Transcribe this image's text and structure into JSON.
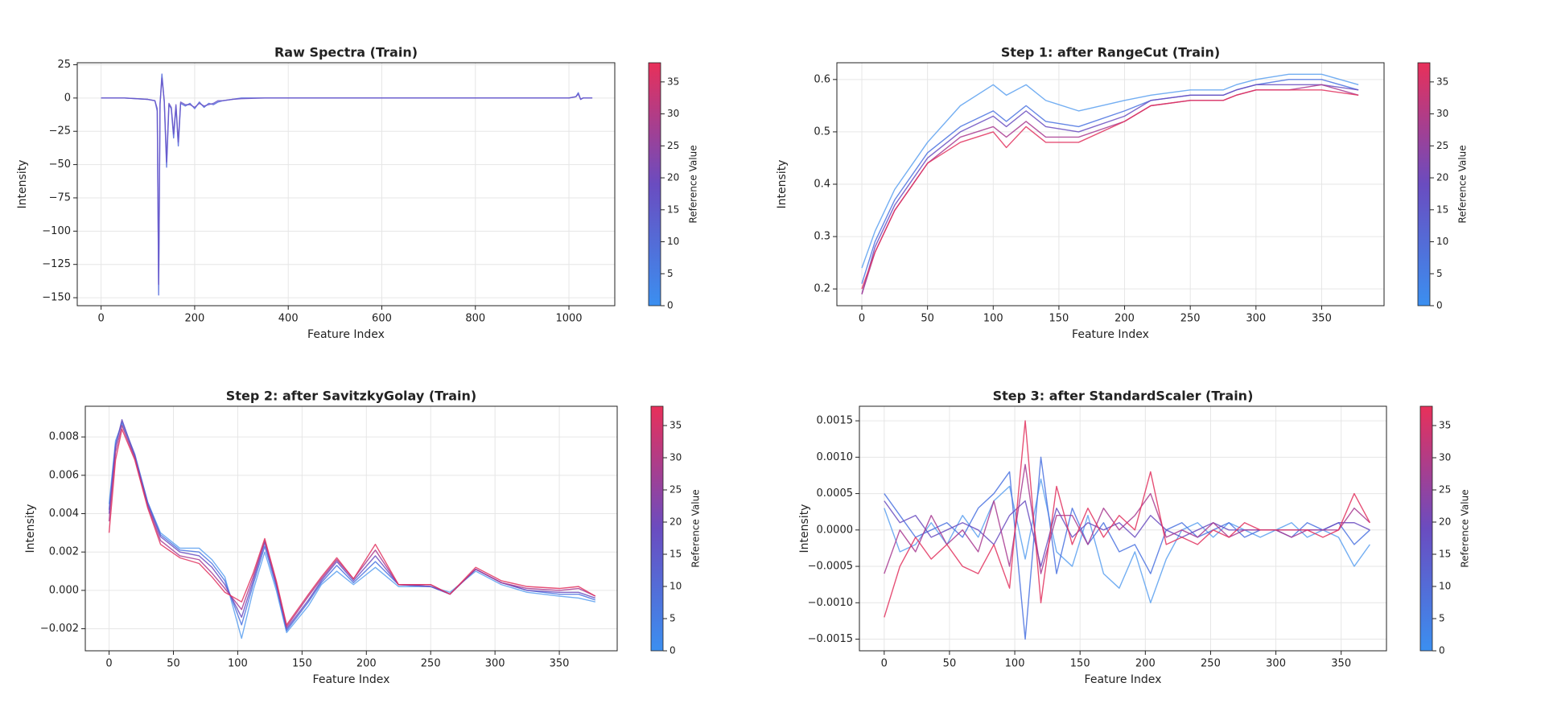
{
  "chart_data": [
    {
      "type": "line",
      "title": "Raw Spectra (Train)",
      "xlabel": "Feature Index",
      "ylabel": "Intensity",
      "x": [
        0,
        50,
        100,
        115,
        120,
        123,
        126,
        130,
        135,
        140,
        145,
        150,
        155,
        160,
        165,
        170,
        180,
        190,
        200,
        210,
        220,
        230,
        240,
        250,
        260,
        280,
        300,
        350,
        400,
        600,
        800,
        1000,
        1015,
        1020,
        1025,
        1030,
        1050
      ],
      "series": [
        {
          "color": "#4f66dc",
          "values": [
            0,
            0,
            -1,
            -2,
            -10,
            -148,
            -5,
            18,
            -3,
            -52,
            -5,
            -8,
            -30,
            -6,
            -36,
            -4,
            -6,
            -4,
            -8,
            -3,
            -7,
            -4,
            -5,
            -3,
            -2,
            -1,
            0,
            0,
            0,
            0,
            0,
            0,
            1,
            4,
            -1,
            0,
            0
          ]
        },
        {
          "color": "#6a55c8",
          "values": [
            0,
            0,
            -1,
            -2,
            -8,
            -140,
            -4,
            15,
            -2,
            -48,
            -4,
            -7,
            -27,
            -5,
            -33,
            -3,
            -5,
            -5,
            -7,
            -4,
            -6,
            -5,
            -4,
            -2,
            -2,
            -1,
            -0.5,
            0,
            0,
            0,
            0,
            0,
            1,
            3,
            -1,
            0,
            0
          ]
        }
      ],
      "xlim": [
        -51,
        1098
      ],
      "ylim": [
        -156,
        26.5
      ],
      "xticks": [
        0,
        200,
        400,
        600,
        800,
        1000
      ],
      "yticks": [
        25,
        0,
        {
          "value": -25,
          "label": "−25"
        },
        {
          "value": -50,
          "label": "−50"
        },
        {
          "value": -75,
          "label": "−75"
        },
        {
          "value": -100,
          "label": "−100"
        },
        {
          "value": -125,
          "label": "−125"
        },
        {
          "value": -150,
          "label": "−150"
        }
      ],
      "grid": true,
      "colorbar": {
        "label": "Reference Value",
        "lim": [
          0,
          38
        ],
        "ticks": [
          0,
          5,
          10,
          15,
          20,
          25,
          30,
          35
        ],
        "colors": [
          "#3b8ff0",
          "#6a4cc0",
          "#e8305a"
        ]
      }
    },
    {
      "type": "line",
      "title": "Step 1: after RangeCut (Train)",
      "xlabel": "Feature Index",
      "ylabel": "Intensity",
      "x": [
        0,
        10,
        25,
        50,
        75,
        100,
        110,
        125,
        140,
        165,
        200,
        220,
        250,
        275,
        285,
        300,
        325,
        350,
        378
      ],
      "series": [
        {
          "color": "#5aa0f0",
          "values": [
            0.24,
            0.31,
            0.39,
            0.48,
            0.55,
            0.59,
            0.57,
            0.59,
            0.56,
            0.54,
            0.56,
            0.57,
            0.58,
            0.58,
            0.59,
            0.6,
            0.61,
            0.61,
            0.59
          ]
        },
        {
          "color": "#4a72e0",
          "values": [
            0.21,
            0.29,
            0.37,
            0.46,
            0.51,
            0.54,
            0.52,
            0.55,
            0.52,
            0.51,
            0.54,
            0.56,
            0.57,
            0.57,
            0.58,
            0.59,
            0.6,
            0.6,
            0.58
          ]
        },
        {
          "color": "#6a4cc0",
          "values": [
            0.19,
            0.28,
            0.36,
            0.45,
            0.5,
            0.53,
            0.51,
            0.54,
            0.51,
            0.5,
            0.53,
            0.56,
            0.57,
            0.57,
            0.58,
            0.59,
            0.59,
            0.59,
            0.58
          ]
        },
        {
          "color": "#a83a90",
          "values": [
            0.19,
            0.27,
            0.35,
            0.44,
            0.49,
            0.51,
            0.49,
            0.52,
            0.49,
            0.49,
            0.52,
            0.55,
            0.56,
            0.56,
            0.57,
            0.58,
            0.58,
            0.59,
            0.57
          ]
        },
        {
          "color": "#e2315e",
          "values": [
            0.2,
            0.27,
            0.35,
            0.44,
            0.48,
            0.5,
            0.47,
            0.51,
            0.48,
            0.48,
            0.52,
            0.55,
            0.56,
            0.56,
            0.57,
            0.58,
            0.58,
            0.58,
            0.57
          ]
        }
      ],
      "xlim": [
        -19,
        397.5
      ],
      "ylim": [
        0.168,
        0.632
      ],
      "xticks": [
        0,
        50,
        100,
        150,
        200,
        250,
        300,
        350
      ],
      "yticks": [
        0.2,
        0.3,
        0.4,
        0.5,
        0.6
      ],
      "grid": true,
      "colorbar": {
        "label": "Reference Value",
        "lim": [
          0,
          38
        ],
        "ticks": [
          0,
          5,
          10,
          15,
          20,
          25,
          30,
          35
        ],
        "colors": [
          "#3b8ff0",
          "#6a4cc0",
          "#e8305a"
        ]
      }
    },
    {
      "type": "line",
      "title": "Step 2: after SavitzkyGolay (Train)",
      "xlabel": "Feature Index",
      "ylabel": "Intensity",
      "x": [
        0,
        5,
        10,
        20,
        30,
        40,
        55,
        70,
        80,
        90,
        103,
        112,
        121,
        130,
        138,
        155,
        165,
        177,
        190,
        207,
        225,
        250,
        265,
        285,
        305,
        325,
        350,
        365,
        378
      ],
      "series": [
        {
          "color": "#5aa0f0",
          "values": [
            0.0045,
            0.0078,
            0.0087,
            0.007,
            0.0046,
            0.003,
            0.0022,
            0.0022,
            0.0016,
            0.0007,
            -0.0025,
            0,
            0.002,
            0,
            -0.0022,
            -0.0008,
            0.0003,
            0.001,
            0.0003,
            0.0012,
            0.0002,
            0.0002,
            -0.0001,
            0.001,
            0.0003,
            -0.0001,
            -0.0003,
            -0.0004,
            -0.0006
          ]
        },
        {
          "color": "#4a72e0",
          "values": [
            0.0042,
            0.0076,
            0.0088,
            0.0071,
            0.0046,
            0.0029,
            0.0021,
            0.002,
            0.0014,
            0.0005,
            -0.0018,
            0.0003,
            0.0023,
            0.0002,
            -0.0021,
            -0.0006,
            0.0004,
            0.0013,
            0.0004,
            0.0015,
            0.0003,
            0.0002,
            -0.0002,
            0.0011,
            0.0004,
            0,
            -0.0002,
            -0.0002,
            -0.0005
          ]
        },
        {
          "color": "#6a4cc0",
          "values": [
            0.004,
            0.0075,
            0.0089,
            0.007,
            0.0045,
            0.0028,
            0.002,
            0.0018,
            0.0012,
            0.0003,
            -0.0014,
            0.0005,
            0.0025,
            0.0003,
            -0.002,
            -0.0005,
            0.0005,
            0.0015,
            0.0005,
            0.0018,
            0.0003,
            0.0002,
            -0.0002,
            0.0011,
            0.0004,
            0,
            -0.0001,
            -0.0001,
            -0.0004
          ]
        },
        {
          "color": "#a83a90",
          "values": [
            0.0036,
            0.0072,
            0.0086,
            0.0069,
            0.0044,
            0.0026,
            0.0018,
            0.0016,
            0.0009,
            0.0001,
            -0.001,
            0.0007,
            0.0026,
            0.0004,
            -0.0019,
            -0.0003,
            0.0006,
            0.0016,
            0.0006,
            0.0021,
            0.0003,
            0.0003,
            -0.0002,
            0.0011,
            0.0004,
            0.0001,
            0,
            0.0001,
            -0.0003
          ]
        },
        {
          "color": "#e2315e",
          "values": [
            0.003,
            0.0068,
            0.0084,
            0.0068,
            0.0043,
            0.0024,
            0.0017,
            0.0014,
            0.0007,
            -0.0001,
            -0.0006,
            0.0009,
            0.0027,
            0.0005,
            -0.0018,
            -0.0002,
            0.0007,
            0.0017,
            0.0006,
            0.0024,
            0.0003,
            0.0003,
            -0.0002,
            0.0012,
            0.0005,
            0.0002,
            0.0001,
            0.0002,
            -0.0003
          ]
        }
      ],
      "xlim": [
        -18.5,
        395
      ],
      "ylim": [
        -0.00315,
        0.0096
      ],
      "xticks": [
        0,
        50,
        100,
        150,
        200,
        250,
        300,
        350
      ],
      "yticks": [
        {
          "value": -0.002,
          "label": "−0.002"
        },
        {
          "value": 0,
          "label": "0.000"
        },
        0.002,
        0.004,
        0.006,
        0.008
      ],
      "grid": true,
      "colorbar": {
        "label": "Reference Value",
        "lim": [
          0,
          38
        ],
        "ticks": [
          0,
          5,
          10,
          15,
          20,
          25,
          30,
          35
        ],
        "colors": [
          "#3b8ff0",
          "#6a4cc0",
          "#e8305a"
        ]
      }
    },
    {
      "type": "line",
      "title": "Step 3: after StandardScaler (Train)",
      "xlabel": "Feature Index",
      "ylabel": "Intensity",
      "x": [
        0,
        12,
        24,
        36,
        48,
        60,
        72,
        84,
        96,
        108,
        120,
        132,
        144,
        156,
        168,
        180,
        192,
        204,
        216,
        228,
        240,
        252,
        264,
        276,
        288,
        300,
        312,
        324,
        336,
        348,
        360,
        372
      ],
      "series": [
        {
          "color": "#5aa0f0",
          "values": [
            0.0003,
            -0.0003,
            -0.0002,
            0.0001,
            -0.0002,
            0.0002,
            -0.0001,
            0.0004,
            0.0006,
            -0.0004,
            0.0007,
            -0.0003,
            -0.0005,
            0.0002,
            -0.0006,
            -0.0008,
            -0.0003,
            -0.001,
            -0.0004,
            0,
            0.0001,
            -0.0001,
            0.0001,
            0,
            -0.0001,
            0,
            0.0001,
            -0.0001,
            0,
            -0.0001,
            -0.0005,
            -0.0002
          ]
        },
        {
          "color": "#4a72e0",
          "values": [
            0.0005,
            0.0002,
            -0.0001,
            0,
            0.0001,
            -0.0001,
            0.0003,
            0.0005,
            0.0008,
            -0.0015,
            0.001,
            -0.0006,
            0.0003,
            -0.0002,
            0.0001,
            -0.0003,
            -0.0002,
            -0.0006,
            0,
            0.0001,
            -0.0001,
            0,
            0.0001,
            -0.0001,
            0,
            0,
            -0.0001,
            0.0001,
            0,
            0.0001,
            -0.0002,
            0
          ]
        },
        {
          "color": "#6a4cc0",
          "values": [
            0.0004,
            0.0001,
            0.0002,
            -0.0001,
            0,
            0.0001,
            0,
            -0.0002,
            0.0002,
            0.0004,
            -0.0005,
            0.0003,
            -0.0001,
            0.0001,
            0,
            0.0001,
            -0.0001,
            0.0002,
            0,
            -0.0001,
            0,
            0.0001,
            0,
            0,
            0,
            0,
            0,
            0,
            0,
            0.0001,
            0.0001,
            0
          ]
        },
        {
          "color": "#a83a90",
          "values": [
            -0.0006,
            0,
            -0.0003,
            0.0002,
            -0.0002,
            0,
            -0.0003,
            0.0004,
            -0.0005,
            0.0009,
            -0.0006,
            0.0002,
            0.0002,
            -0.0002,
            0.0003,
            0,
            0.0002,
            0.0005,
            -0.0001,
            0,
            -0.0001,
            0.0001,
            -0.0001,
            0,
            0,
            0,
            -0.0001,
            0,
            0,
            0,
            0.0003,
            0.0001
          ]
        },
        {
          "color": "#e2315e",
          "values": [
            -0.0012,
            -0.0005,
            -0.0001,
            -0.0004,
            -0.0002,
            -0.0005,
            -0.0006,
            -0.0002,
            -0.0008,
            0.0015,
            -0.001,
            0.0006,
            -0.0002,
            0.0003,
            -0.0001,
            0.0002,
            0,
            0.0008,
            -0.0002,
            -0.0001,
            -0.0002,
            0,
            -0.0001,
            0.0001,
            0,
            0,
            0,
            0,
            -0.0001,
            0,
            0.0005,
            0.0001
          ]
        }
      ],
      "xlim": [
        -19,
        384.7
      ],
      "ylim": [
        -0.00166,
        0.0017
      ],
      "xticks": [
        0,
        50,
        100,
        150,
        200,
        250,
        300,
        350
      ],
      "yticks": [
        {
          "value": -0.0015,
          "label": "−0.0015"
        },
        {
          "value": -0.001,
          "label": "−0.0010"
        },
        {
          "value": -0.0005,
          "label": "−0.0005"
        },
        {
          "value": 0,
          "label": "0.0000"
        },
        0.0005,
        {
          "value": 0.001,
          "label": "0.0010"
        },
        0.0015
      ],
      "grid": true,
      "colorbar": {
        "label": "Reference Value",
        "lim": [
          0,
          38
        ],
        "ticks": [
          0,
          5,
          10,
          15,
          20,
          25,
          30,
          35
        ],
        "colors": [
          "#3b8ff0",
          "#6a4cc0",
          "#e8305a"
        ]
      }
    }
  ]
}
